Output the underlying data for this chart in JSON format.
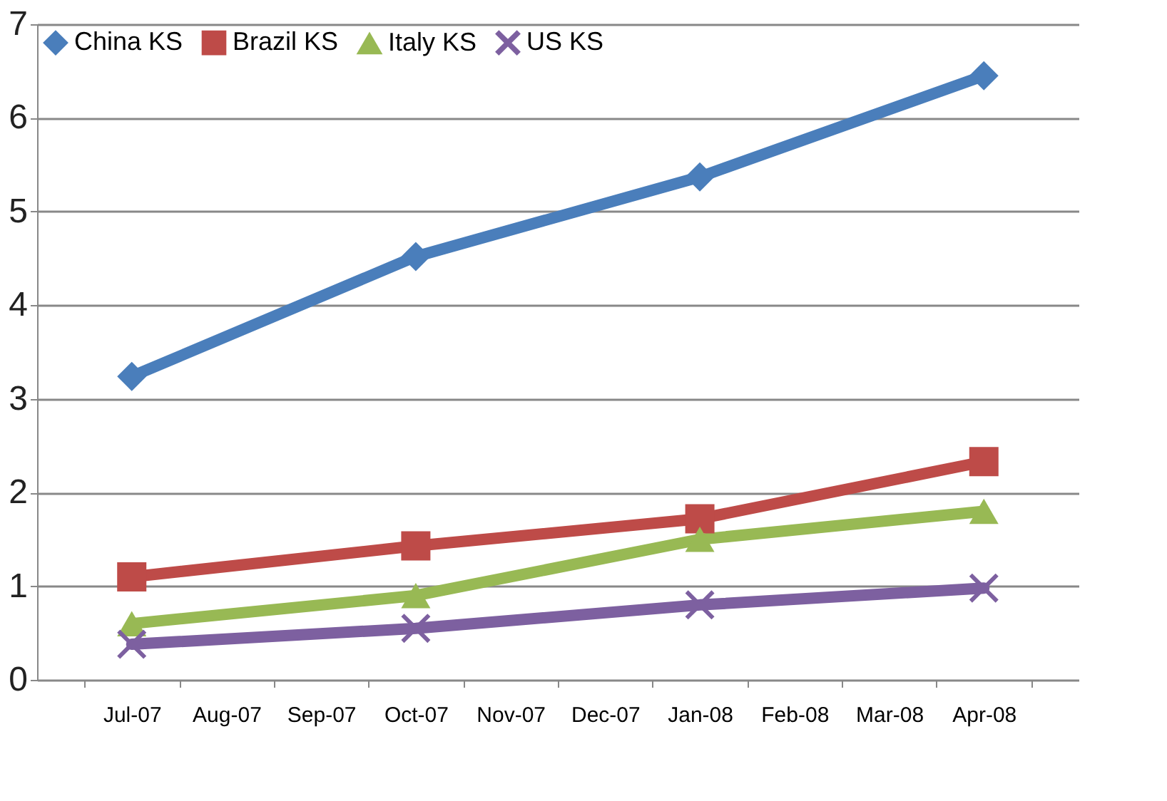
{
  "chart_data": {
    "type": "line",
    "categories": [
      "Jul-07",
      "Aug-07",
      "Sep-07",
      "Oct-07",
      "Nov-07",
      "Dec-07",
      "Jan-08",
      "Feb-08",
      "Mar-08",
      "Apr-08"
    ],
    "series": [
      {
        "name": "China KS",
        "color": "#4a7ebb",
        "marker": "diamond",
        "values": [
          3.24,
          null,
          null,
          4.52,
          null,
          null,
          5.37,
          null,
          null,
          6.45
        ]
      },
      {
        "name": "Brazil KS",
        "color": "#be4b48",
        "marker": "square",
        "values": [
          1.1,
          null,
          null,
          1.43,
          null,
          null,
          1.72,
          null,
          null,
          2.33
        ]
      },
      {
        "name": "Italy KS",
        "color": "#98b954",
        "marker": "triangle",
        "values": [
          0.6,
          null,
          null,
          0.9,
          null,
          null,
          1.5,
          null,
          null,
          1.8
        ]
      },
      {
        "name": "US KS",
        "color": "#7d60a0",
        "marker": "cross",
        "values": [
          0.38,
          null,
          null,
          0.55,
          null,
          null,
          0.8,
          null,
          null,
          0.98
        ]
      }
    ],
    "ylim": [
      0,
      7
    ],
    "yticks": [
      0,
      1,
      2,
      3,
      4,
      5,
      6,
      7
    ],
    "grid": "y",
    "legend": "top left",
    "line_style": "solid"
  }
}
